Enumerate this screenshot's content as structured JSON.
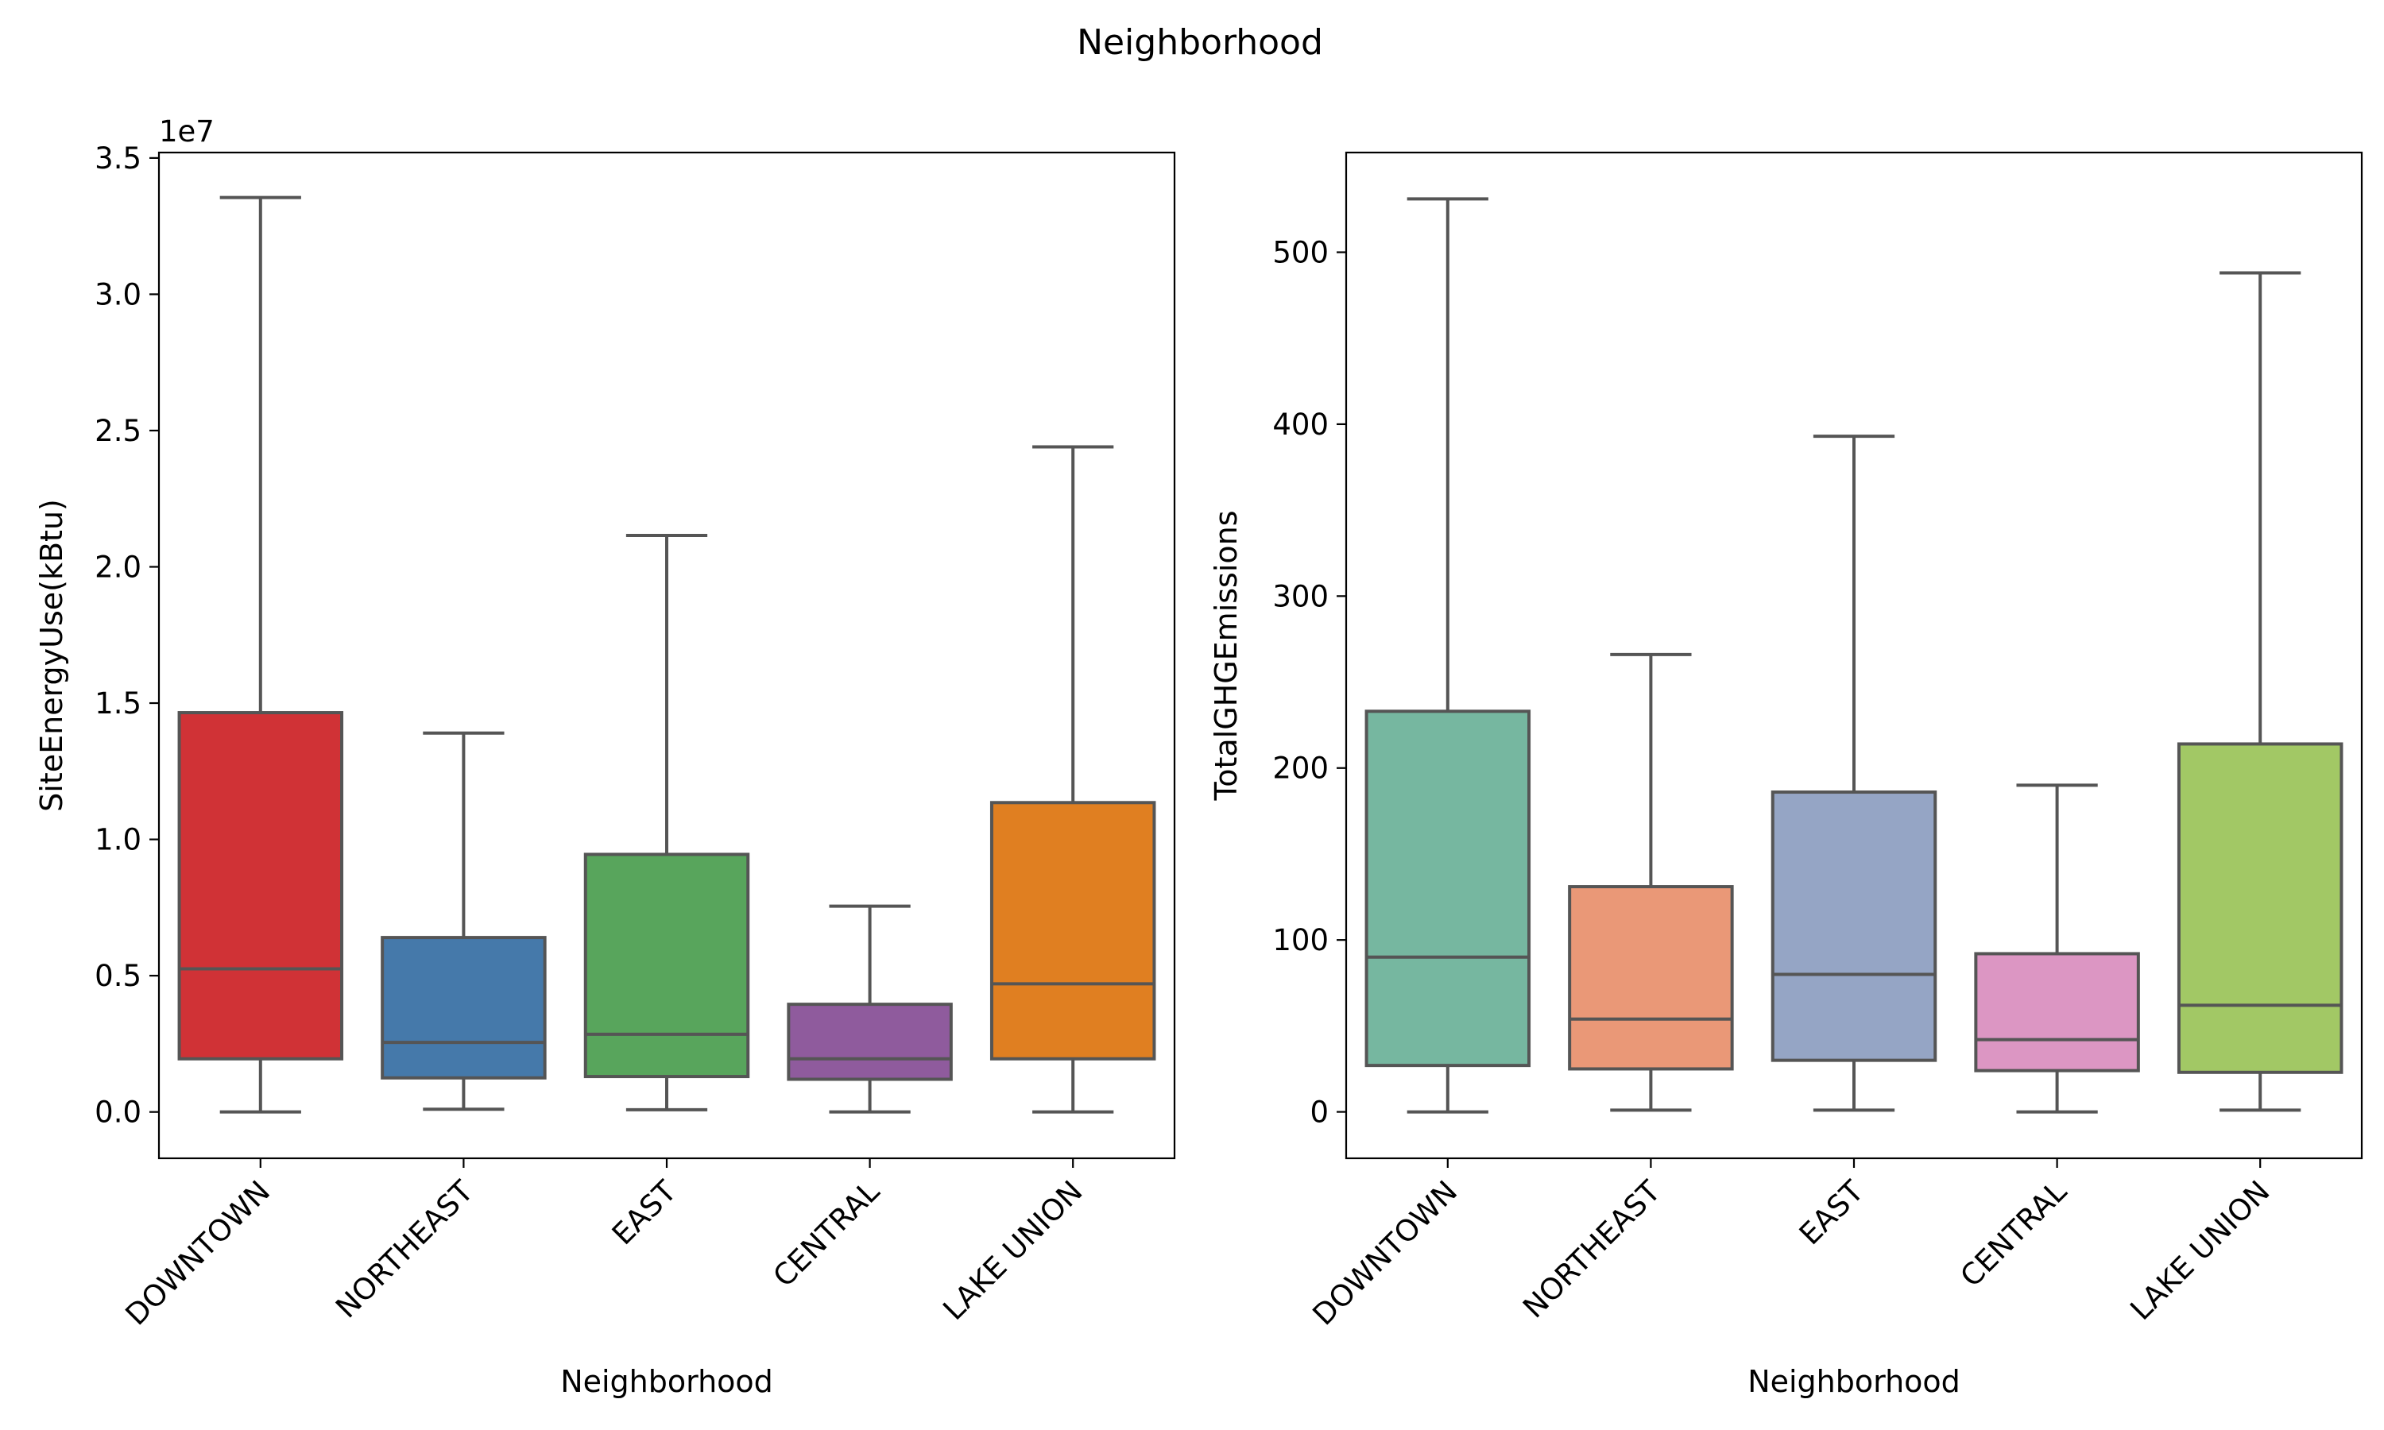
{
  "figure": {
    "suptitle": "Neighborhood"
  },
  "chart_data": [
    {
      "type": "box",
      "title": "",
      "xlabel": "Neighborhood",
      "ylabel": "SiteEnergyUse(kBtu)",
      "y_offset_label": "1e7",
      "y_scale": 10000000,
      "ylim": [
        -0.17,
        3.52
      ],
      "yticks": [
        0.0,
        0.5,
        1.0,
        1.5,
        2.0,
        2.5,
        3.0,
        3.5
      ],
      "ytick_labels": [
        "0.0",
        "0.5",
        "1.0",
        "1.5",
        "2.0",
        "2.5",
        "3.0",
        "3.5"
      ],
      "categories": [
        "DOWNTOWN",
        "NORTHEAST",
        "EAST",
        "CENTRAL",
        "LAKE UNION"
      ],
      "colors": [
        "#d03236",
        "#4579aa",
        "#58a55c",
        "#8f5b9d",
        "#e07f21"
      ],
      "boxes": [
        {
          "whislo": 0.0,
          "q1": 0.195,
          "median": 0.525,
          "q3": 1.465,
          "whishi": 3.355
        },
        {
          "whislo": 0.01,
          "q1": 0.125,
          "median": 0.255,
          "q3": 0.64,
          "whishi": 1.39
        },
        {
          "whislo": 0.008,
          "q1": 0.13,
          "median": 0.285,
          "q3": 0.945,
          "whishi": 2.115
        },
        {
          "whislo": 0.0,
          "q1": 0.12,
          "median": 0.195,
          "q3": 0.395,
          "whishi": 0.755
        },
        {
          "whislo": 0.0,
          "q1": 0.195,
          "median": 0.47,
          "q3": 1.135,
          "whishi": 2.44
        }
      ]
    },
    {
      "type": "box",
      "title": "",
      "xlabel": "Neighborhood",
      "ylabel": "TotalGHGEmissions",
      "ylim": [
        -27,
        558
      ],
      "yticks": [
        0,
        100,
        200,
        300,
        400,
        500
      ],
      "ytick_labels": [
        "0",
        "100",
        "200",
        "300",
        "400",
        "500"
      ],
      "categories": [
        "DOWNTOWN",
        "NORTHEAST",
        "EAST",
        "CENTRAL",
        "LAKE UNION"
      ],
      "colors": [
        "#76b7a0",
        "#ea9877",
        "#95a5c5",
        "#dc96c3",
        "#a2c865"
      ],
      "boxes": [
        {
          "whislo": 0,
          "q1": 27,
          "median": 90,
          "q3": 233,
          "whishi": 531
        },
        {
          "whislo": 1,
          "q1": 25,
          "median": 54,
          "q3": 131,
          "whishi": 266
        },
        {
          "whislo": 1,
          "q1": 30,
          "median": 80,
          "q3": 186,
          "whishi": 393
        },
        {
          "whislo": 0,
          "q1": 24,
          "median": 42,
          "q3": 92,
          "whishi": 190
        },
        {
          "whislo": 1,
          "q1": 23,
          "median": 62,
          "q3": 214,
          "whishi": 488
        }
      ]
    }
  ]
}
